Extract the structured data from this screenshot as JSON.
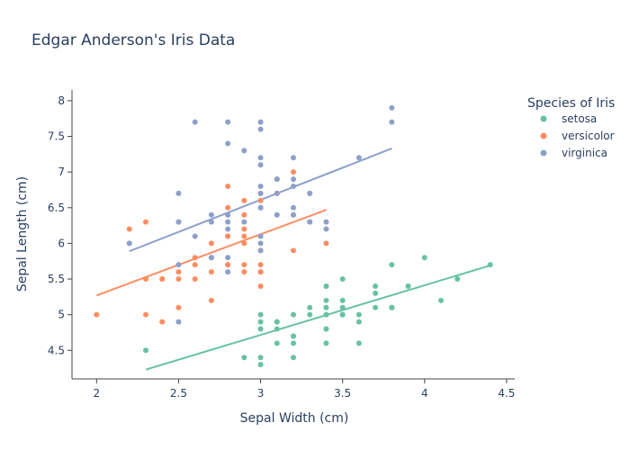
{
  "chart_data": {
    "type": "scatter",
    "title": "Edgar Anderson's Iris Data",
    "xlabel": "Sepal Width (cm)",
    "ylabel": "Sepal Length (cm)",
    "xlim": [
      1.85,
      4.55
    ],
    "ylim": [
      4.1,
      8.15
    ],
    "x_ticks": [
      2,
      2.5,
      3,
      3.5,
      4,
      4.5
    ],
    "x_tick_labels": [
      "2",
      "2.5",
      "3",
      "3.5",
      "4",
      "4.5"
    ],
    "y_ticks": [
      4.5,
      5,
      5.5,
      6,
      6.5,
      7,
      7.5,
      8
    ],
    "y_tick_labels": [
      "4.5",
      "5",
      "5.5",
      "6",
      "6.5",
      "7",
      "7.5",
      "8"
    ],
    "grid": false,
    "legend": {
      "title": "Species of Iris",
      "placement": "right"
    },
    "series": [
      {
        "name": "setosa",
        "color": "#66c2a5",
        "points": [
          [
            3.5,
            5.1
          ],
          [
            3.0,
            4.9
          ],
          [
            3.2,
            4.7
          ],
          [
            3.1,
            4.6
          ],
          [
            3.6,
            5.0
          ],
          [
            3.9,
            5.4
          ],
          [
            3.4,
            4.6
          ],
          [
            3.4,
            5.0
          ],
          [
            2.9,
            4.4
          ],
          [
            3.1,
            4.9
          ],
          [
            3.7,
            5.4
          ],
          [
            3.4,
            4.8
          ],
          [
            3.0,
            4.8
          ],
          [
            3.0,
            4.3
          ],
          [
            4.0,
            5.8
          ],
          [
            4.4,
            5.7
          ],
          [
            3.9,
            5.4
          ],
          [
            3.5,
            5.1
          ],
          [
            3.8,
            5.7
          ],
          [
            3.8,
            5.1
          ],
          [
            3.4,
            5.4
          ],
          [
            3.7,
            5.1
          ],
          [
            3.6,
            4.6
          ],
          [
            3.3,
            5.1
          ],
          [
            3.4,
            4.8
          ],
          [
            3.0,
            5.0
          ],
          [
            3.4,
            5.0
          ],
          [
            3.5,
            5.2
          ],
          [
            3.4,
            5.2
          ],
          [
            3.2,
            4.7
          ],
          [
            3.1,
            4.8
          ],
          [
            3.4,
            5.4
          ],
          [
            4.1,
            5.2
          ],
          [
            4.2,
            5.5
          ],
          [
            3.1,
            4.9
          ],
          [
            3.2,
            5.0
          ],
          [
            3.5,
            5.5
          ],
          [
            3.6,
            4.9
          ],
          [
            3.0,
            4.4
          ],
          [
            3.4,
            5.1
          ],
          [
            3.5,
            5.0
          ],
          [
            2.3,
            4.5
          ],
          [
            3.2,
            4.4
          ],
          [
            3.5,
            5.0
          ],
          [
            3.8,
            5.1
          ],
          [
            3.0,
            4.8
          ],
          [
            3.8,
            5.1
          ],
          [
            3.2,
            4.6
          ],
          [
            3.7,
            5.3
          ],
          [
            3.3,
            5.0
          ]
        ],
        "trendline": [
          [
            2.3,
            4.23
          ],
          [
            4.4,
            5.69
          ]
        ]
      },
      {
        "name": "versicolor",
        "color": "#fc8d62",
        "points": [
          [
            3.2,
            7.0
          ],
          [
            3.2,
            6.4
          ],
          [
            3.1,
            6.9
          ],
          [
            2.3,
            5.5
          ],
          [
            2.8,
            6.5
          ],
          [
            2.8,
            5.7
          ],
          [
            3.3,
            6.3
          ],
          [
            2.4,
            4.9
          ],
          [
            2.9,
            6.6
          ],
          [
            2.7,
            5.2
          ],
          [
            2.0,
            5.0
          ],
          [
            3.0,
            5.9
          ],
          [
            2.2,
            6.0
          ],
          [
            2.9,
            6.1
          ],
          [
            2.9,
            5.6
          ],
          [
            3.1,
            6.7
          ],
          [
            3.0,
            5.6
          ],
          [
            2.7,
            5.8
          ],
          [
            2.2,
            6.2
          ],
          [
            2.5,
            5.6
          ],
          [
            3.2,
            5.9
          ],
          [
            2.8,
            6.1
          ],
          [
            2.5,
            6.3
          ],
          [
            2.8,
            6.1
          ],
          [
            2.9,
            6.4
          ],
          [
            3.0,
            6.6
          ],
          [
            2.8,
            6.8
          ],
          [
            3.0,
            6.7
          ],
          [
            2.9,
            6.0
          ],
          [
            2.6,
            5.7
          ],
          [
            2.4,
            5.5
          ],
          [
            2.4,
            5.5
          ],
          [
            2.7,
            5.8
          ],
          [
            2.7,
            6.0
          ],
          [
            3.0,
            5.4
          ],
          [
            3.4,
            6.0
          ],
          [
            3.1,
            6.7
          ],
          [
            2.3,
            6.3
          ],
          [
            3.0,
            5.6
          ],
          [
            2.5,
            5.5
          ],
          [
            2.6,
            5.5
          ],
          [
            3.0,
            6.1
          ],
          [
            2.6,
            5.8
          ],
          [
            2.3,
            5.0
          ],
          [
            2.7,
            5.6
          ],
          [
            3.0,
            5.7
          ],
          [
            2.9,
            5.7
          ],
          [
            2.9,
            6.2
          ],
          [
            2.5,
            5.1
          ],
          [
            2.8,
            5.7
          ]
        ],
        "trendline": [
          [
            2.0,
            5.27
          ],
          [
            3.4,
            6.47
          ]
        ]
      },
      {
        "name": "virginica",
        "color": "#8da0cb",
        "points": [
          [
            3.3,
            6.3
          ],
          [
            2.7,
            5.8
          ],
          [
            3.0,
            7.1
          ],
          [
            2.9,
            6.3
          ],
          [
            3.0,
            6.5
          ],
          [
            3.0,
            7.6
          ],
          [
            2.5,
            4.9
          ],
          [
            2.9,
            7.3
          ],
          [
            2.5,
            6.7
          ],
          [
            3.6,
            7.2
          ],
          [
            3.2,
            6.5
          ],
          [
            2.7,
            6.4
          ],
          [
            3.0,
            6.8
          ],
          [
            2.5,
            5.7
          ],
          [
            2.8,
            5.8
          ],
          [
            3.2,
            6.4
          ],
          [
            3.0,
            6.5
          ],
          [
            3.8,
            7.7
          ],
          [
            2.6,
            7.7
          ],
          [
            2.2,
            6.0
          ],
          [
            3.2,
            6.9
          ],
          [
            2.8,
            5.6
          ],
          [
            2.8,
            7.7
          ],
          [
            2.7,
            6.3
          ],
          [
            3.3,
            6.7
          ],
          [
            3.2,
            7.2
          ],
          [
            2.8,
            6.2
          ],
          [
            3.0,
            6.1
          ],
          [
            2.8,
            6.4
          ],
          [
            3.0,
            7.2
          ],
          [
            2.8,
            7.4
          ],
          [
            3.8,
            7.9
          ],
          [
            2.8,
            6.4
          ],
          [
            2.8,
            6.3
          ],
          [
            2.6,
            6.1
          ],
          [
            3.0,
            7.7
          ],
          [
            3.4,
            6.3
          ],
          [
            3.1,
            6.4
          ],
          [
            3.0,
            6.0
          ],
          [
            3.1,
            6.9
          ],
          [
            3.1,
            6.7
          ],
          [
            3.1,
            6.9
          ],
          [
            2.7,
            5.8
          ],
          [
            3.2,
            6.8
          ],
          [
            3.3,
            6.7
          ],
          [
            3.0,
            6.7
          ],
          [
            2.5,
            6.3
          ],
          [
            3.0,
            6.5
          ],
          [
            3.4,
            6.2
          ],
          [
            3.0,
            5.9
          ]
        ],
        "trendline": [
          [
            2.2,
            5.89
          ],
          [
            3.8,
            7.33
          ]
        ]
      }
    ]
  }
}
